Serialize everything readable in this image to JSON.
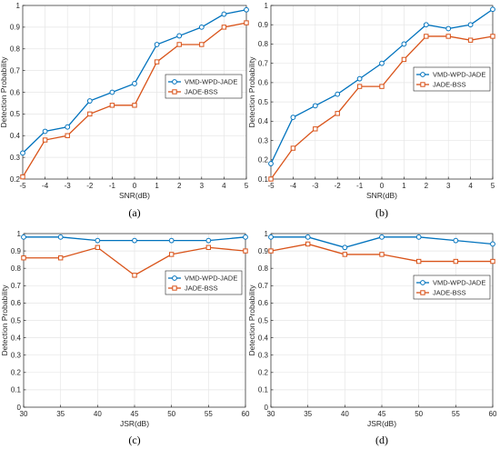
{
  "chart_data": [
    {
      "type": "line",
      "caption": "(a)",
      "xlabel": "SNR(dB)",
      "ylabel": "Detection Probability",
      "x": [
        -5,
        -4,
        -3,
        -2,
        -1,
        0,
        1,
        2,
        3,
        4,
        5
      ],
      "x_ticks": [
        -5,
        -4,
        -3,
        -2,
        -1,
        0,
        1,
        2,
        3,
        4,
        5
      ],
      "xlim": [
        -5,
        5
      ],
      "ylim": [
        0.2,
        1
      ],
      "y_ticks": [
        0.2,
        0.3,
        0.4,
        0.5,
        0.6,
        0.7,
        0.8,
        0.9,
        1
      ],
      "grid": true,
      "legend_position": "center-right",
      "series": [
        {
          "name": "VMD-WPD-JADE",
          "color": "#0072BD",
          "marker": "circle",
          "values": [
            0.32,
            0.42,
            0.44,
            0.56,
            0.6,
            0.64,
            0.82,
            0.86,
            0.9,
            0.96,
            0.98
          ]
        },
        {
          "name": "JADE-BSS",
          "color": "#D95319",
          "marker": "square",
          "values": [
            0.21,
            0.38,
            0.4,
            0.5,
            0.54,
            0.54,
            0.74,
            0.82,
            0.82,
            0.9,
            0.92
          ]
        }
      ]
    },
    {
      "type": "line",
      "caption": "(b)",
      "xlabel": "SNR(dB)",
      "ylabel": "Detection Probability",
      "x": [
        -5,
        -4,
        -3,
        -2,
        -1,
        0,
        1,
        2,
        3,
        4,
        5
      ],
      "x_ticks": [
        -5,
        -4,
        -3,
        -2,
        -1,
        0,
        1,
        2,
        3,
        4,
        5
      ],
      "xlim": [
        -5,
        5
      ],
      "ylim": [
        0.1,
        1
      ],
      "y_ticks": [
        0.1,
        0.2,
        0.3,
        0.4,
        0.5,
        0.6,
        0.7,
        0.8,
        0.9,
        1
      ],
      "grid": true,
      "legend_position": "center-right",
      "series": [
        {
          "name": "VMD-WPD-JADE",
          "color": "#0072BD",
          "marker": "circle",
          "values": [
            0.18,
            0.42,
            0.48,
            0.54,
            0.62,
            0.7,
            0.8,
            0.9,
            0.88,
            0.9,
            0.98
          ]
        },
        {
          "name": "JADE-BSS",
          "color": "#D95319",
          "marker": "square",
          "values": [
            0.1,
            0.26,
            0.36,
            0.44,
            0.58,
            0.58,
            0.72,
            0.84,
            0.84,
            0.82,
            0.84
          ]
        }
      ]
    },
    {
      "type": "line",
      "caption": "(c)",
      "xlabel": "JSR(dB)",
      "ylabel": "Detection Probability",
      "x": [
        30,
        35,
        40,
        45,
        50,
        55,
        60
      ],
      "x_ticks": [
        30,
        35,
        40,
        45,
        50,
        55,
        60
      ],
      "xlim": [
        30,
        60
      ],
      "ylim": [
        0,
        1
      ],
      "y_ticks": [
        0,
        0.1,
        0.2,
        0.3,
        0.4,
        0.5,
        0.6,
        0.7,
        0.8,
        0.9,
        1
      ],
      "grid": true,
      "legend_position": "upper-right",
      "series": [
        {
          "name": "VMD-WPD-JADE",
          "color": "#0072BD",
          "marker": "circle",
          "values": [
            0.98,
            0.98,
            0.96,
            0.96,
            0.96,
            0.96,
            0.98
          ]
        },
        {
          "name": "JADE-BSS",
          "color": "#D95319",
          "marker": "square",
          "values": [
            0.86,
            0.86,
            0.92,
            0.76,
            0.88,
            0.92,
            0.9
          ]
        }
      ]
    },
    {
      "type": "line",
      "caption": "(d)",
      "xlabel": "JSR(dB)",
      "ylabel": "Detection Probability",
      "x": [
        30,
        35,
        40,
        45,
        50,
        55,
        60
      ],
      "x_ticks": [
        30,
        35,
        40,
        45,
        50,
        55,
        60
      ],
      "xlim": [
        30,
        60
      ],
      "ylim": [
        0,
        1
      ],
      "y_ticks": [
        0,
        0.1,
        0.2,
        0.3,
        0.4,
        0.5,
        0.6,
        0.7,
        0.8,
        0.9,
        1
      ],
      "grid": true,
      "legend_position": "upper-right",
      "series": [
        {
          "name": "VMD-WPD-JADE",
          "color": "#0072BD",
          "marker": "circle",
          "values": [
            0.98,
            0.98,
            0.92,
            0.98,
            0.98,
            0.96,
            0.94
          ]
        },
        {
          "name": "JADE-BSS",
          "color": "#D95319",
          "marker": "square",
          "values": [
            0.9,
            0.94,
            0.88,
            0.88,
            0.84,
            0.84,
            0.84
          ]
        }
      ]
    }
  ]
}
